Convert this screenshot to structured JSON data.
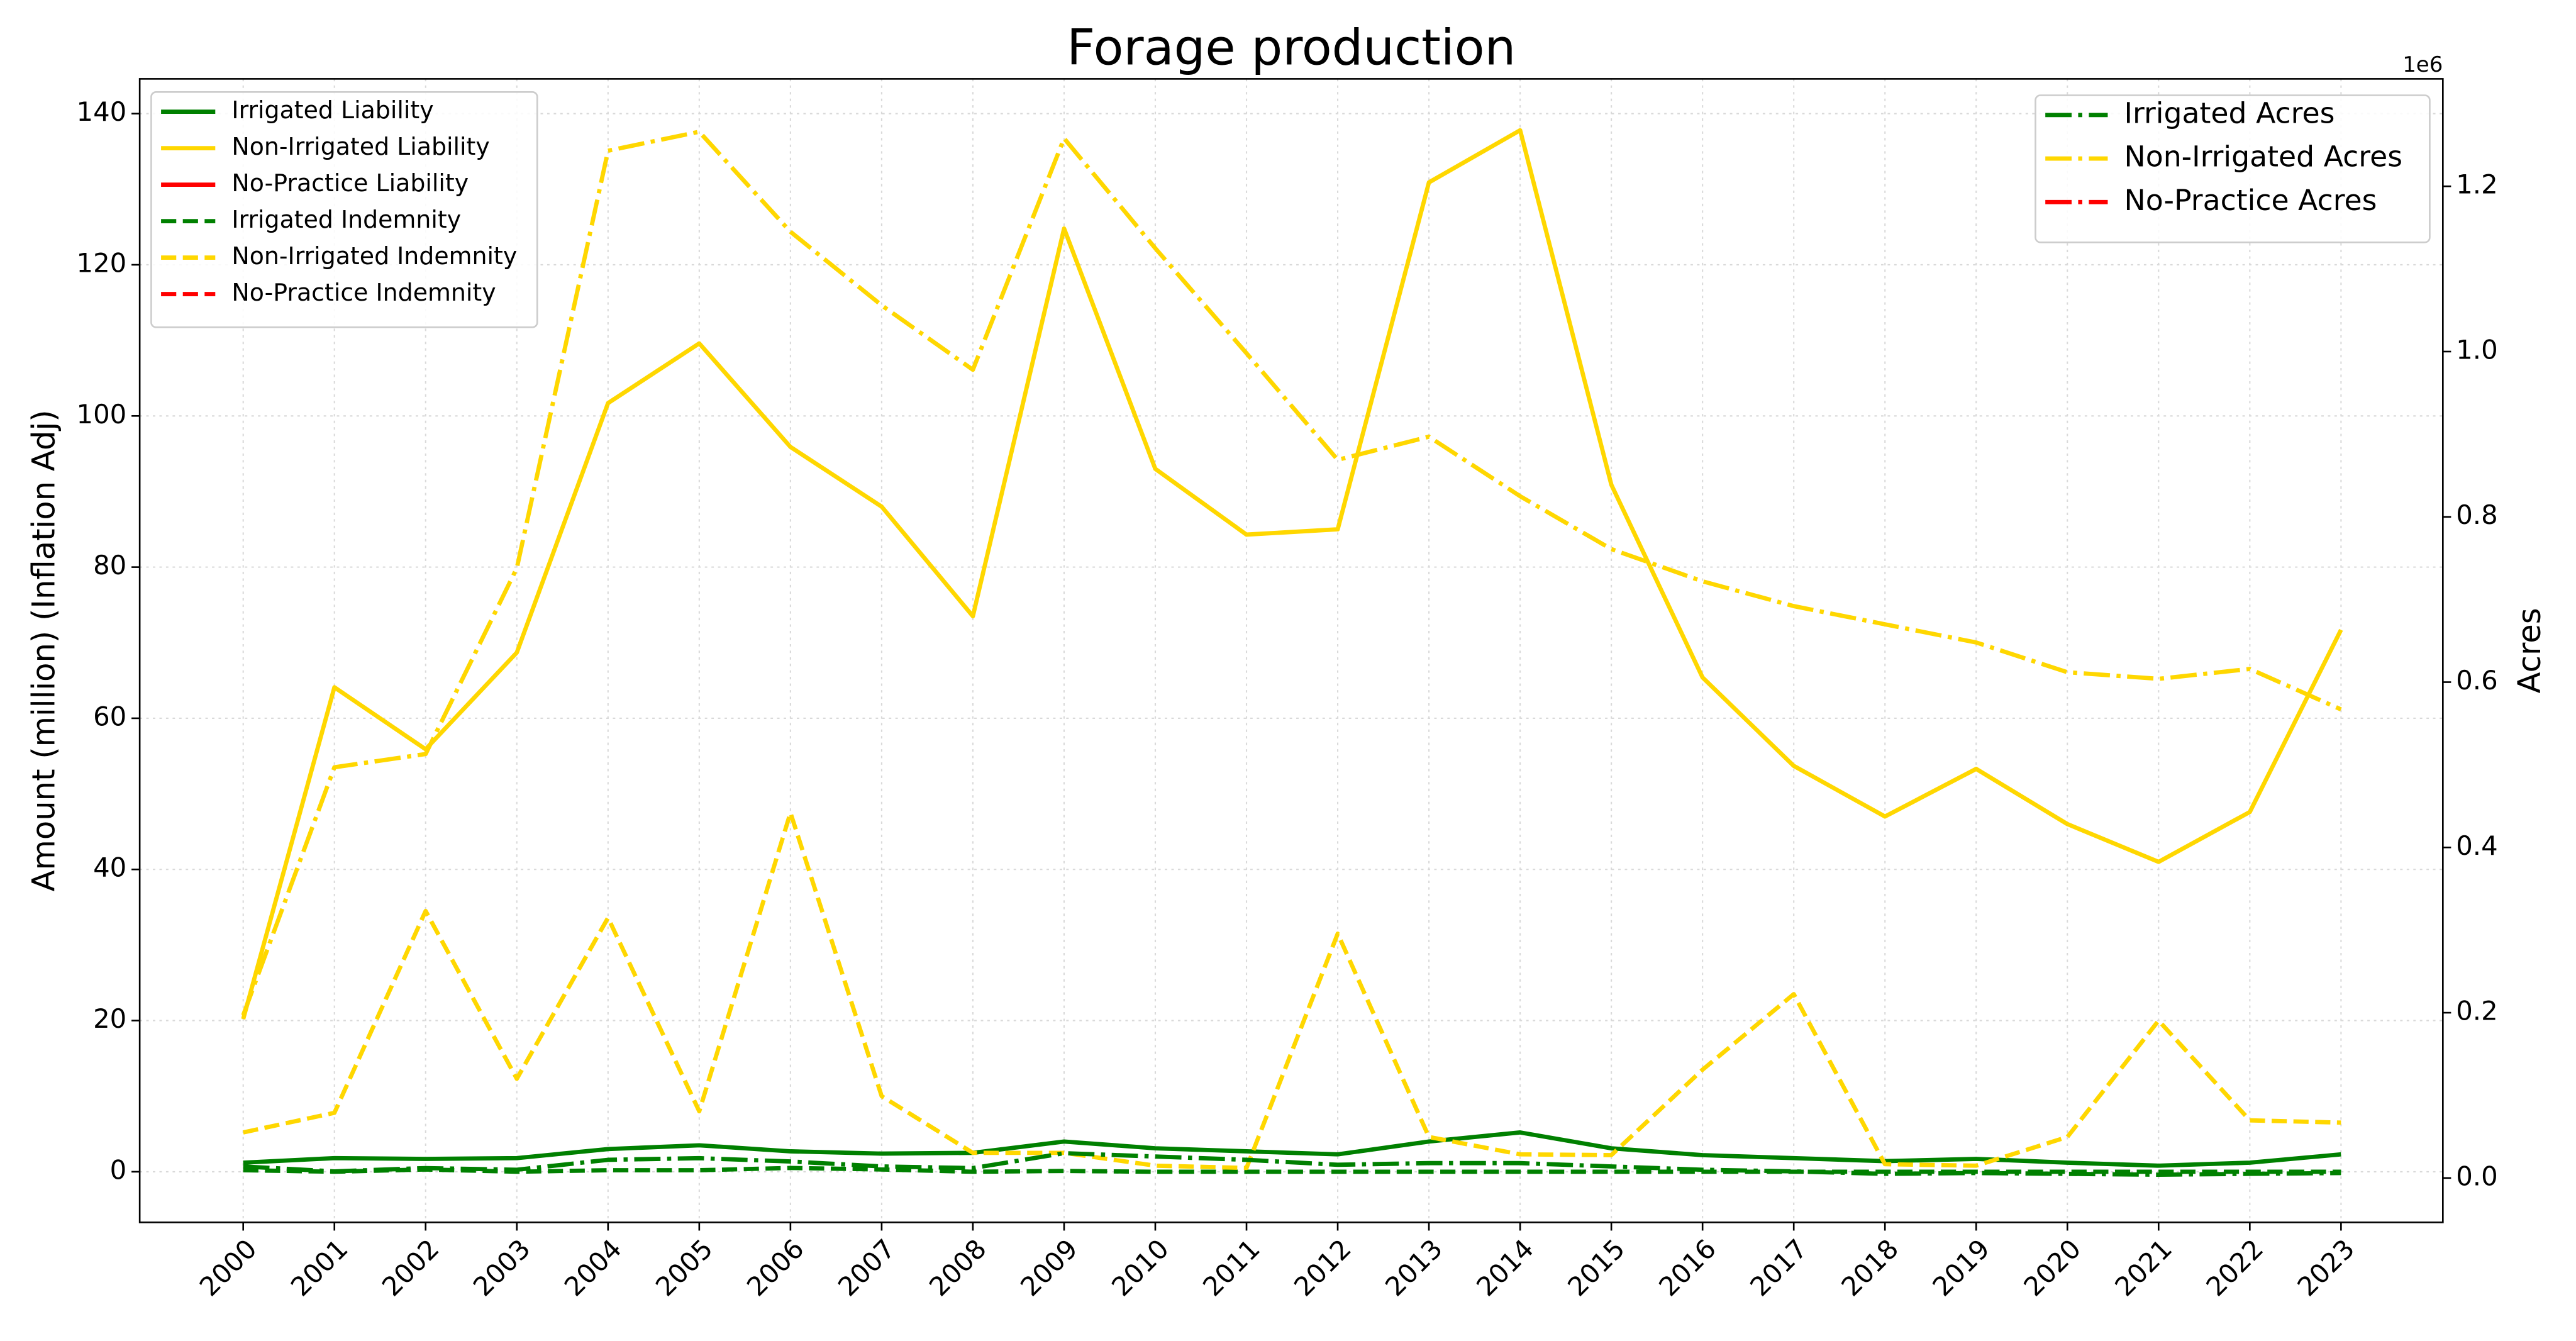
{
  "chart_data": {
    "type": "line",
    "title": "Forage production",
    "ylabel": "Amount (million) (Inflation Adj)",
    "y2label": "Acres",
    "y2_offset_label": "1e6",
    "categories": [
      "2000",
      "2001",
      "2002",
      "2003",
      "2004",
      "2005",
      "2006",
      "2007",
      "2008",
      "2009",
      "2010",
      "2011",
      "2012",
      "2013",
      "2014",
      "2015",
      "2016",
      "2017",
      "2018",
      "2019",
      "2020",
      "2021",
      "2022",
      "2023"
    ],
    "ylim": [
      -6.7,
      144.6
    ],
    "yticks": [
      0,
      20,
      40,
      60,
      80,
      100,
      120,
      140
    ],
    "y2lim": [
      -53700,
      1330000
    ],
    "y2ticks": [
      {
        "value": 0,
        "label": "0.0"
      },
      {
        "value": 200000,
        "label": "0.2"
      },
      {
        "value": 400000,
        "label": "0.4"
      },
      {
        "value": 600000,
        "label": "0.6"
      },
      {
        "value": 800000,
        "label": "0.8"
      },
      {
        "value": 1000000,
        "label": "1.0"
      },
      {
        "value": 1200000,
        "label": "1.2"
      }
    ],
    "grid": true,
    "legend_loc": "upper left",
    "legend2_loc": "upper right",
    "series": [
      {
        "name": "Irrigated Liability",
        "color": "#008000",
        "style": "solid",
        "values": [
          1.2,
          1.8,
          1.7,
          1.8,
          3,
          3.5,
          2.7,
          2.4,
          2.5,
          4,
          3.1,
          2.7,
          2.3,
          4,
          5.2,
          3.1,
          2.2,
          1.8,
          1.4,
          1.7,
          1.2,
          0.8,
          1.2,
          2.3
        ]
      },
      {
        "name": "Non-Irrigated Liability",
        "color": "#FFD700",
        "style": "solid",
        "values": [
          20.2,
          64.1,
          55.9,
          68.7,
          101.7,
          109.6,
          95.9,
          88,
          73.5,
          124.8,
          93,
          84.3,
          85,
          130.9,
          137.8,
          90.9,
          65.4,
          53.7,
          47,
          53.3,
          46,
          41,
          47.6,
          71.7
        ]
      },
      {
        "name": "No-Practice Liability",
        "color": "#FF0000",
        "style": "solid",
        "values": [
          null,
          null,
          null,
          null,
          null,
          null,
          null,
          null,
          null,
          null,
          null,
          null,
          null,
          null,
          null,
          null,
          null,
          null,
          null,
          null,
          null,
          null,
          null,
          null
        ]
      },
      {
        "name": "Irrigated Indemnity",
        "color": "#008000",
        "style": "dashed",
        "values": [
          0.2,
          0,
          0.3,
          0,
          0.2,
          0.2,
          0.5,
          0.3,
          0,
          0.1,
          0,
          0,
          0,
          0,
          0,
          0,
          0,
          0,
          0,
          0,
          0,
          0,
          0,
          0
        ]
      },
      {
        "name": "Non-Irrigated Indemnity",
        "color": "#FFD700",
        "style": "dashed",
        "values": [
          5.2,
          7.8,
          34.5,
          12.3,
          33.6,
          8,
          47.5,
          10,
          2.5,
          2.5,
          0.8,
          0.5,
          31.5,
          4.6,
          2.3,
          2.2,
          13.5,
          23.5,
          1,
          0.8,
          4.6,
          20,
          6.8,
          6.5
        ]
      },
      {
        "name": "No-Practice Indemnity",
        "color": "#FF0000",
        "style": "dashed",
        "values": [
          null,
          null,
          null,
          null,
          null,
          null,
          null,
          null,
          null,
          null,
          null,
          null,
          null,
          null,
          null,
          null,
          null,
          null,
          null,
          null,
          null,
          null,
          null,
          null
        ]
      },
      {
        "name": "Irrigated Acres",
        "color": "#008000",
        "style": "dashdot",
        "axis": "y2",
        "values": [
          14000,
          8000,
          12000,
          10000,
          22000,
          24000,
          20000,
          14000,
          12000,
          30000,
          26000,
          22000,
          16000,
          18000,
          18000,
          14000,
          10000,
          8000,
          5000,
          6000,
          5000,
          4000,
          5000,
          6000
        ]
      },
      {
        "name": "Non-Irrigated Acres",
        "color": "#FFD700",
        "style": "dashdot",
        "axis": "y2",
        "values": [
          197000,
          497000,
          513000,
          738000,
          1243000,
          1266000,
          1145000,
          1056000,
          978000,
          1258000,
          1125000,
          998000,
          869000,
          897000,
          825000,
          761000,
          722000,
          692000,
          670000,
          648000,
          612000,
          604000,
          616000,
          567000
        ]
      },
      {
        "name": "No-Practice Acres",
        "color": "#FF0000",
        "style": "dashdot",
        "axis": "y2",
        "values": [
          null,
          null,
          null,
          null,
          null,
          null,
          null,
          null,
          null,
          null,
          null,
          null,
          null,
          null,
          null,
          null,
          null,
          null,
          null,
          null,
          null,
          null,
          null,
          null
        ]
      }
    ]
  }
}
